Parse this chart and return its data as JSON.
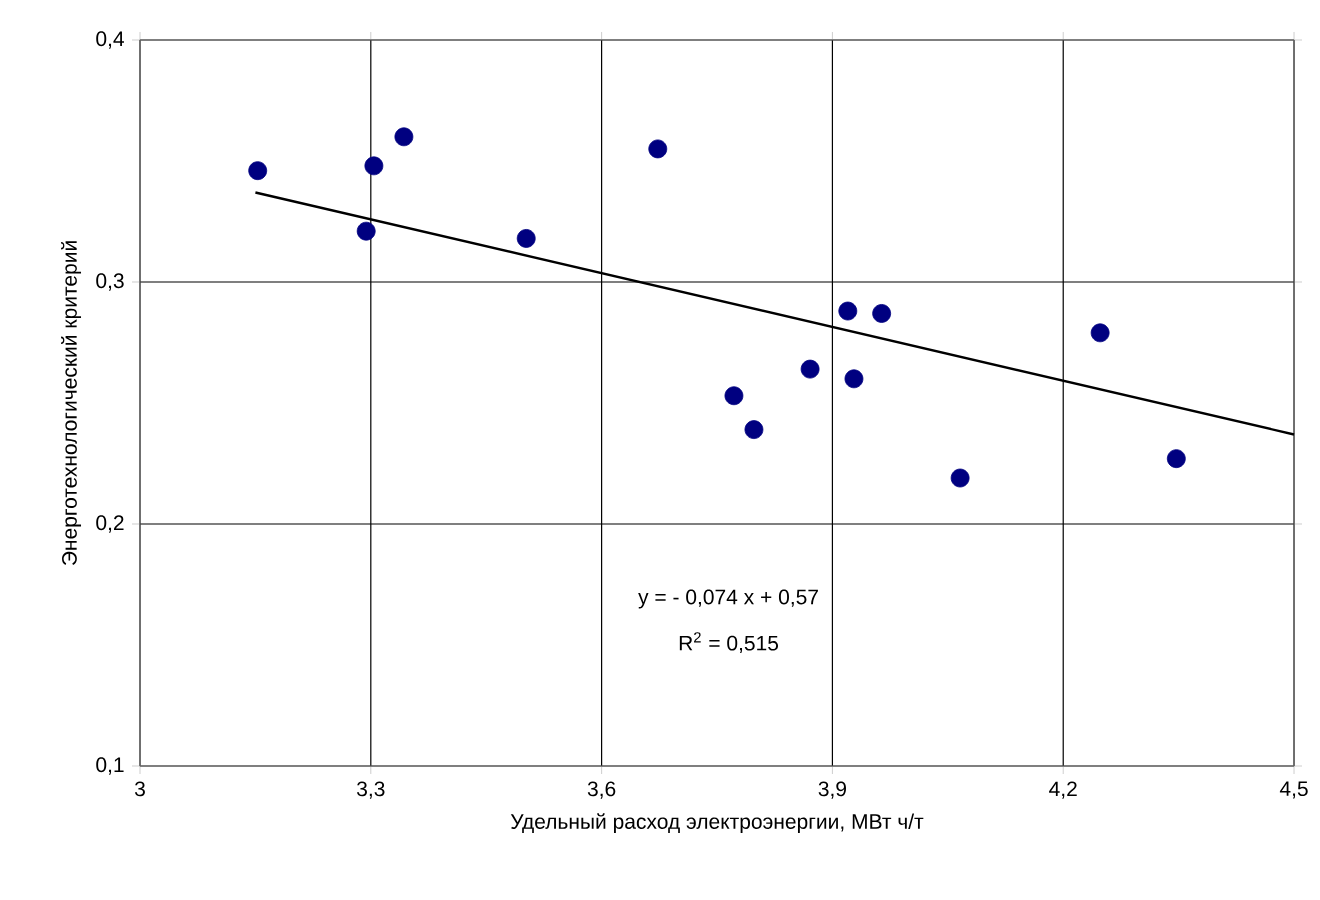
{
  "chart_data": {
    "type": "scatter",
    "xlabel": "Удельный расход электроэнергии, МВт ч/т",
    "ylabel": "Энерготехнологический критерий",
    "xlim": [
      3,
      4.5
    ],
    "ylim": [
      0.1,
      0.4
    ],
    "xticks": [
      3,
      {
        "value": 3.3,
        "label": "3,3"
      },
      {
        "value": 3.6,
        "label": "3,6"
      },
      {
        "value": 3.9,
        "label": "3,9"
      },
      {
        "value": 4.2,
        "label": "4,2"
      },
      {
        "value": 4.5,
        "label": "4,5"
      }
    ],
    "yticks": [
      {
        "value": 0.1,
        "label": "0,1"
      },
      {
        "value": 0.2,
        "label": "0,2"
      },
      {
        "value": 0.3,
        "label": "0,3"
      },
      {
        "value": 0.4,
        "label": "0,4"
      }
    ],
    "grid": true,
    "series": [
      {
        "color": "#000080",
        "marker": "circle",
        "x": [
          3.153,
          3.304,
          3.343,
          3.294,
          3.502,
          3.673,
          3.772,
          3.798,
          3.871,
          3.92,
          3.964,
          3.928,
          4.066,
          4.248,
          4.347
        ],
        "values": [
          0.346,
          0.348,
          0.36,
          0.321,
          0.318,
          0.355,
          0.253,
          0.239,
          0.264,
          0.288,
          0.287,
          0.26,
          0.219,
          0.279,
          0.227
        ]
      },
      {
        "type": "line",
        "color": "#000000",
        "marker": "none",
        "line_style": "solid",
        "x": [
          3.15,
          4.5
        ],
        "values": [
          0.337,
          0.237
        ]
      }
    ],
    "annotations": [
      "y = - 0,074 x + 0,57",
      "R$^{2}$ = 0,515"
    ]
  }
}
